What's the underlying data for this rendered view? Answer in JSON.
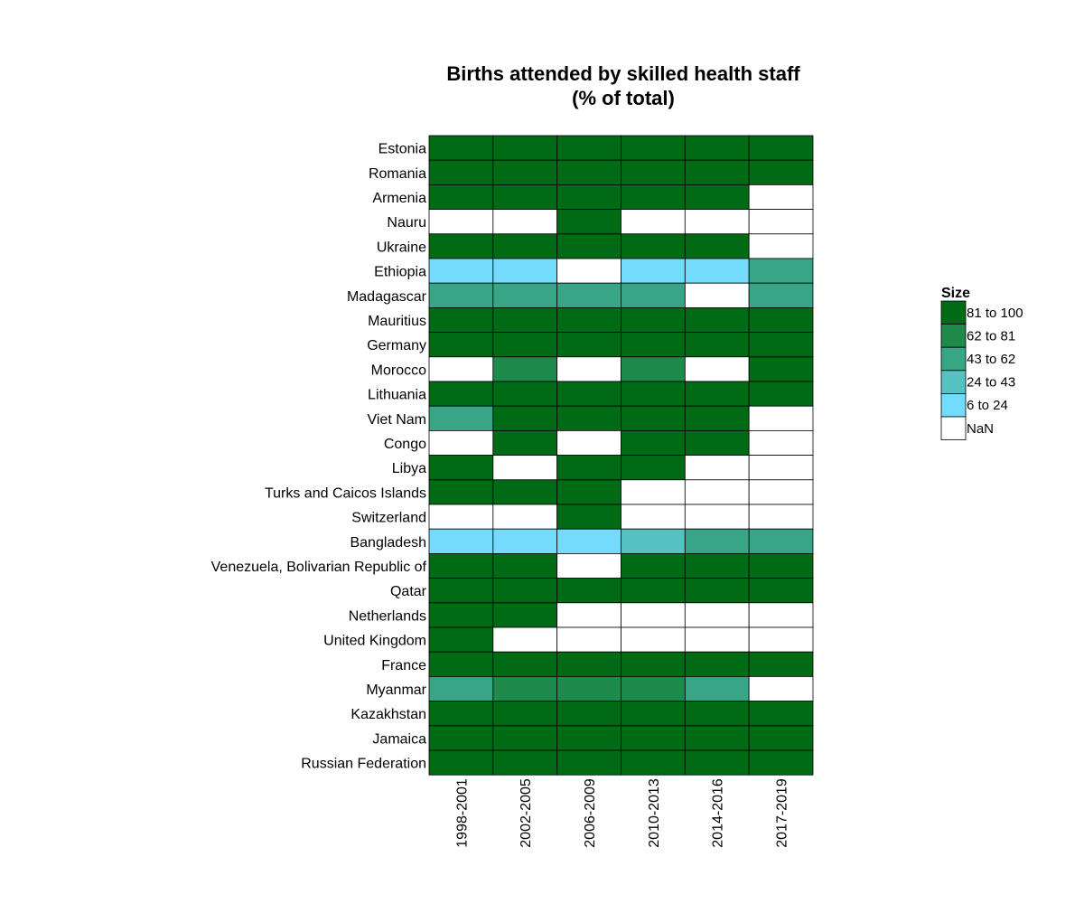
{
  "chart_data": {
    "type": "heatmap",
    "title_lines": [
      "Births attended by skilled health staff",
      "(% of total)"
    ],
    "columns": [
      "1998-2001",
      "2002-2005",
      "2006-2009",
      "2010-2013",
      "2014-2016",
      "2017-2019"
    ],
    "rows": [
      "Estonia",
      "Romania",
      "Armenia",
      "Nauru",
      "Ukraine",
      "Ethiopia",
      "Madagascar",
      "Mauritius",
      "Germany",
      "Morocco",
      "Lithuania",
      "Viet Nam",
      "Congo",
      "Libya",
      "Turks and Caicos Islands",
      "Switzerland",
      "Bangladesh",
      "Venezuela, Bolivarian Republic of",
      "Qatar",
      "Netherlands",
      "United Kingdom",
      "France",
      "Myanmar",
      "Kazakhstan",
      "Jamaica",
      "Russian Federation"
    ],
    "categories_matrix": [
      [
        "81 to 100",
        "81 to 100",
        "81 to 100",
        "81 to 100",
        "81 to 100",
        "81 to 100"
      ],
      [
        "81 to 100",
        "81 to 100",
        "81 to 100",
        "81 to 100",
        "81 to 100",
        "81 to 100"
      ],
      [
        "81 to 100",
        "81 to 100",
        "81 to 100",
        "81 to 100",
        "81 to 100",
        "NaN"
      ],
      [
        "NaN",
        "NaN",
        "81 to 100",
        "NaN",
        "NaN",
        "NaN"
      ],
      [
        "81 to 100",
        "81 to 100",
        "81 to 100",
        "81 to 100",
        "81 to 100",
        "NaN"
      ],
      [
        "6 to 24",
        "6 to 24",
        "NaN",
        "6 to 24",
        "6 to 24",
        "43 to 62"
      ],
      [
        "43 to 62",
        "43 to 62",
        "43 to 62",
        "43 to 62",
        "NaN",
        "43 to 62"
      ],
      [
        "81 to 100",
        "81 to 100",
        "81 to 100",
        "81 to 100",
        "81 to 100",
        "81 to 100"
      ],
      [
        "81 to 100",
        "81 to 100",
        "81 to 100",
        "81 to 100",
        "81 to 100",
        "81 to 100"
      ],
      [
        "NaN",
        "62 to 81",
        "NaN",
        "62 to 81",
        "NaN",
        "81 to 100"
      ],
      [
        "81 to 100",
        "81 to 100",
        "81 to 100",
        "81 to 100",
        "81 to 100",
        "81 to 100"
      ],
      [
        "43 to 62",
        "81 to 100",
        "81 to 100",
        "81 to 100",
        "81 to 100",
        "NaN"
      ],
      [
        "NaN",
        "81 to 100",
        "NaN",
        "81 to 100",
        "81 to 100",
        "NaN"
      ],
      [
        "81 to 100",
        "NaN",
        "81 to 100",
        "81 to 100",
        "NaN",
        "NaN"
      ],
      [
        "81 to 100",
        "81 to 100",
        "81 to 100",
        "NaN",
        "NaN",
        "NaN"
      ],
      [
        "NaN",
        "NaN",
        "81 to 100",
        "NaN",
        "NaN",
        "NaN"
      ],
      [
        "6 to 24",
        "6 to 24",
        "6 to 24",
        "24 to 43",
        "43 to 62",
        "43 to 62"
      ],
      [
        "81 to 100",
        "81 to 100",
        "NaN",
        "81 to 100",
        "81 to 100",
        "81 to 100"
      ],
      [
        "81 to 100",
        "81 to 100",
        "81 to 100",
        "81 to 100",
        "81 to 100",
        "81 to 100"
      ],
      [
        "81 to 100",
        "81 to 100",
        "NaN",
        "NaN",
        "NaN",
        "NaN"
      ],
      [
        "81 to 100",
        "NaN",
        "NaN",
        "NaN",
        "NaN",
        "NaN"
      ],
      [
        "81 to 100",
        "81 to 100",
        "81 to 100",
        "81 to 100",
        "81 to 100",
        "81 to 100"
      ],
      [
        "43 to 62",
        "62 to 81",
        "62 to 81",
        "62 to 81",
        "43 to 62",
        "NaN"
      ],
      [
        "81 to 100",
        "81 to 100",
        "81 to 100",
        "81 to 100",
        "81 to 100",
        "81 to 100"
      ],
      [
        "81 to 100",
        "81 to 100",
        "81 to 100",
        "81 to 100",
        "81 to 100",
        "81 to 100"
      ],
      [
        "81 to 100",
        "81 to 100",
        "81 to 100",
        "81 to 100",
        "81 to 100",
        "81 to 100"
      ]
    ],
    "legend": {
      "title": "Size",
      "placement": "right",
      "entries": [
        {
          "label": "81 to 100",
          "color": "#006a14"
        },
        {
          "label": "62 to 81",
          "color": "#1e8a4c"
        },
        {
          "label": "43 to 62",
          "color": "#38a686"
        },
        {
          "label": "24 to 43",
          "color": "#56c2c2"
        },
        {
          "label": "6 to 24",
          "color": "#73dcfd"
        },
        {
          "label": "NaN",
          "color": "#ffffff"
        }
      ]
    },
    "grid": false
  }
}
